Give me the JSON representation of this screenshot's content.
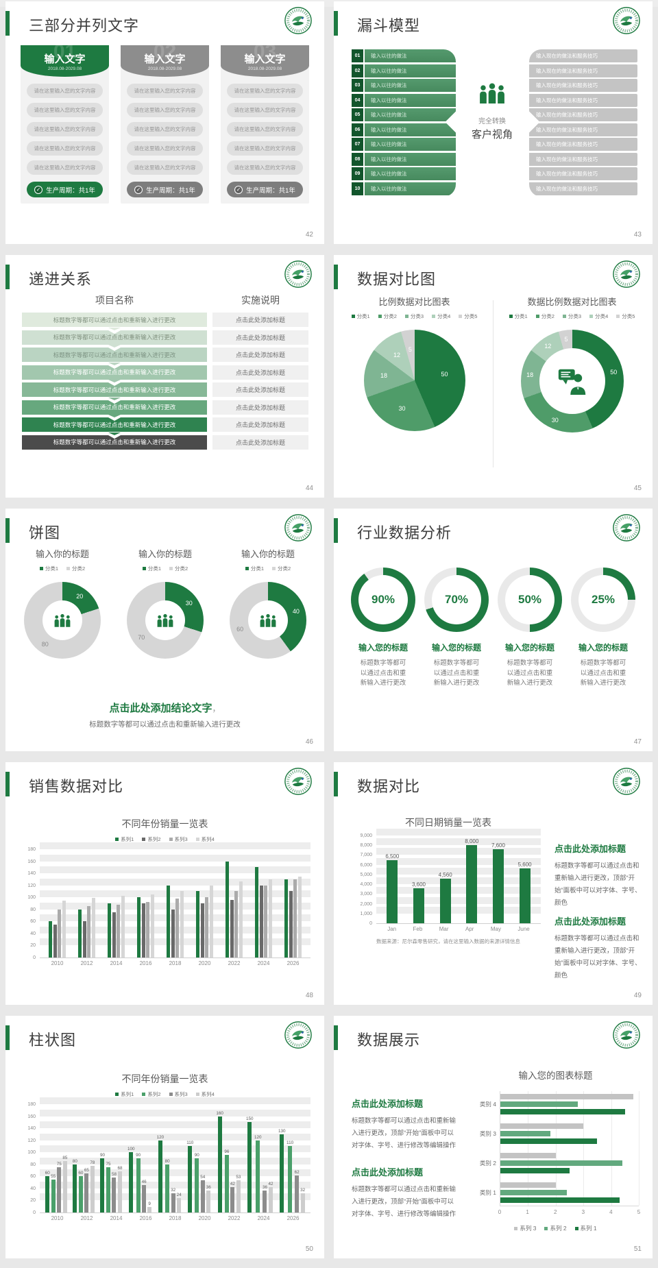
{
  "theme": {
    "accent": "#1e7a41",
    "green_mid": "#4f9c69",
    "gray_header": "#8d8d8d",
    "background": "#e8e8e8"
  },
  "slides": {
    "s42": {
      "title": "三部分并列文字",
      "page": "42",
      "header": "输入文字",
      "date": "2018.08-2029.08",
      "pill": "请在这里输入您的文字内容",
      "pill_count": 5,
      "footer": "生产周期：共1年",
      "columns": [
        {
          "num": "01",
          "color": "#1e7a41",
          "footer_color": "#1e7a41"
        },
        {
          "num": "02",
          "color": "#8d8d8d",
          "footer_color": "#7d7d7d"
        },
        {
          "num": "03",
          "color": "#8d8d8d",
          "footer_color": "#7d7d7d"
        }
      ]
    },
    "s43": {
      "title": "漏斗模型",
      "page": "43",
      "nums": [
        "01",
        "02",
        "03",
        "04",
        "05",
        "06",
        "07",
        "08",
        "09",
        "10"
      ],
      "left_text": "输入以往的做法",
      "right_text": "输入现在的做法和服务技巧",
      "center1": "完全转换",
      "center2": "客户视角"
    },
    "s44": {
      "title": "递进关系",
      "page": "44",
      "header_left": "项目名称",
      "header_right": "实施说明",
      "left_text": "标题数字等都可以通过点击和重新输入进行更改",
      "right_text": "点击此处添加标题",
      "row_colors": [
        "#dfeadd",
        "#cfe0d2",
        "#bad4c2",
        "#a2c7ae",
        "#87b897",
        "#67a87e",
        "#2f8350",
        "#4b4b4b"
      ],
      "row_text_colors": [
        "#80917f",
        "#80917f",
        "#7d9383",
        "#ffffff",
        "#ffffff",
        "#ffffff",
        "#ffffff",
        "#ffffff"
      ]
    },
    "s45": {
      "title": "数据对比图",
      "page": "45"
    },
    "s46": {
      "title": "饼图",
      "page": "46",
      "conclusion": "点击此处添加结论文字",
      "comma": "，",
      "sub": "标题数字等都可以通过点击和重新输入进行更改"
    },
    "s47": {
      "title": "行业数据分析",
      "page": "47",
      "items": [
        {
          "pct": "90%",
          "label": "输入您的标题",
          "desc": "标题数字等都可\n以通过点击和重\n新输入进行更改"
        },
        {
          "pct": "70%",
          "label": "输入您的标题",
          "desc": "标题数字等都可\n以通过点击和重\n新输入进行更改"
        },
        {
          "pct": "50%",
          "label": "输入您的标题",
          "desc": "标题数字等都可\n以通过点击和重\n新输入进行更改"
        },
        {
          "pct": "25%",
          "label": "输入您的标题",
          "desc": "标题数字等都可\n以通过点击和重\n新输入进行更改"
        }
      ]
    },
    "s48": {
      "title": "销售数据对比",
      "page": "48"
    },
    "s49": {
      "title": "数据对比",
      "page": "49",
      "note": "数据来源：尼尔森零售研究，请在这里输入数据的来源详情信息",
      "blocks": [
        {
          "heading": "点击此处添加标题",
          "body": "标题数字等都可以通过点击和重新输入进行更改，顶部“开始”面板中可以对字体、字号、颜色"
        },
        {
          "heading": "点击此处添加标题",
          "body": "标题数字等都可以通过点击和重新输入进行更改，顶部“开始”面板中可以对字体、字号、颜色"
        }
      ]
    },
    "s50": {
      "title": "柱状图",
      "page": "50"
    },
    "s51": {
      "title": "数据展示",
      "page": "51",
      "blocks": [
        {
          "heading": "点击此处添加标题",
          "body": "标题数字等都可以通过点击和重新输入进行更改，顶部“开始”面板中可以对字体、字号、进行修改等编辑操作"
        },
        {
          "heading": "点击此处添加标题",
          "body": "标题数字等都可以通过点击和重新输入进行更改，顶部“开始”面板中可以对字体、字号、进行修改等编辑操作"
        }
      ]
    }
  },
  "chart_data": [
    {
      "slide": "45",
      "type": "pie",
      "title": "比例数据对比图表",
      "legend": [
        "分类1",
        "分类2",
        "分类3",
        "分类4",
        "分类5"
      ],
      "values": [
        50,
        30,
        18,
        12,
        5
      ],
      "colors": [
        "#1e7a41",
        "#4f9c69",
        "#7fb593",
        "#aed0ba",
        "#d2d2d2"
      ]
    },
    {
      "slide": "45",
      "type": "donut",
      "title": "数据比例数据对比图表",
      "legend": [
        "分类1",
        "分类2",
        "分类3",
        "分类4",
        "分类5"
      ],
      "values": [
        50,
        30,
        18,
        12,
        5
      ],
      "colors": [
        "#1e7a41",
        "#4f9c69",
        "#7fb593",
        "#aed0ba",
        "#d2d2d2"
      ],
      "center_icon": "consultant"
    },
    {
      "slide": "46",
      "type": "donut",
      "title": "输入你的标题",
      "legend": [
        "分类1",
        "分类2"
      ],
      "values": [
        20,
        80
      ],
      "colors": [
        "#1e7a41",
        "#d6d6d6"
      ],
      "center_icon": "people"
    },
    {
      "slide": "46",
      "type": "donut",
      "title": "输入你的标题",
      "legend": [
        "分类1",
        "分类2"
      ],
      "values": [
        30,
        70
      ],
      "colors": [
        "#1e7a41",
        "#d6d6d6"
      ],
      "center_icon": "people"
    },
    {
      "slide": "46",
      "type": "donut",
      "title": "输入你的标题",
      "legend": [
        "分类1",
        "分类2"
      ],
      "values": [
        40,
        60
      ],
      "colors": [
        "#1e7a41",
        "#d6d6d6"
      ],
      "center_icon": "people"
    },
    {
      "slide": "47",
      "type": "progress-rings",
      "values": [
        90,
        70,
        50,
        25
      ],
      "unit": "%",
      "color": "#1e7a41",
      "track": "#e9e9e9"
    },
    {
      "slide": "48",
      "type": "bar",
      "title": "不同年份销量一览表",
      "categories": [
        "2010",
        "2012",
        "2014",
        "2016",
        "2018",
        "2020",
        "2022",
        "2024",
        "2026"
      ],
      "series": [
        {
          "name": "系列1",
          "color": "#1e7a41",
          "values": [
            60,
            80,
            90,
            100,
            120,
            110,
            160,
            150,
            130
          ]
        },
        {
          "name": "系列2",
          "color": "#696969",
          "values": [
            55,
            60,
            75,
            90,
            80,
            90,
            96,
            120,
            110
          ]
        },
        {
          "name": "系列3",
          "color": "#ababab",
          "values": [
            80,
            86,
            88,
            92,
            98,
            100,
            110,
            120,
            130
          ]
        },
        {
          "name": "系列4",
          "color": "#d6d6d6",
          "values": [
            95,
            99,
            102,
            105,
            110,
            120,
            126,
            130,
            135
          ]
        }
      ],
      "ylim": [
        0,
        180
      ],
      "ystep": 20
    },
    {
      "slide": "49",
      "type": "bar",
      "title": "不同日期销量一览表",
      "categories": [
        "Jan",
        "Feb",
        "Mar",
        "Apr",
        "May",
        "June"
      ],
      "series": [
        {
          "name": "",
          "color": "#1e7a41",
          "values": [
            6500,
            3600,
            4560,
            8000,
            7600,
            5600
          ]
        }
      ],
      "labels": [
        "6,500",
        "3,600",
        "4,560",
        "8,000",
        "7,600",
        "5,600"
      ],
      "ylim": [
        0,
        9000
      ],
      "ystep": 1000,
      "show_labels": true
    },
    {
      "slide": "50",
      "type": "bar",
      "title": "不同年份销量一览表",
      "categories": [
        "2010",
        "2012",
        "2014",
        "2016",
        "2018",
        "2020",
        "2022",
        "2024",
        "2026"
      ],
      "series": [
        {
          "name": "系列1",
          "color": "#1e7a41",
          "values": [
            60,
            80,
            90,
            100,
            120,
            110,
            160,
            150,
            130
          ]
        },
        {
          "name": "系列2",
          "color": "#4aa06a",
          "values": [
            55,
            60,
            75,
            90,
            80,
            90,
            96,
            120,
            110
          ]
        },
        {
          "name": "系列3",
          "color": "#8c8c8c",
          "values": [
            75,
            65,
            58,
            46,
            32,
            54,
            42,
            36,
            62
          ]
        },
        {
          "name": "系列4",
          "color": "#cdcdcd",
          "values": [
            85,
            78,
            68,
            9,
            24,
            36,
            53,
            42,
            32
          ]
        }
      ],
      "ylim": [
        0,
        180
      ],
      "ystep": 20,
      "show_labels": true
    },
    {
      "slide": "51",
      "type": "hbar",
      "title": "输入您的图表标题",
      "categories": [
        "类别 4",
        "类别 3",
        "类别 2",
        "类别 1"
      ],
      "series": [
        {
          "name": "系列 3",
          "color": "#c3c3c3",
          "values": [
            4.8,
            3.0,
            2.0,
            2.0
          ]
        },
        {
          "name": "系列 2",
          "color": "#62a97e",
          "values": [
            2.8,
            1.8,
            4.4,
            2.4
          ]
        },
        {
          "name": "系列 1",
          "color": "#1e7a41",
          "values": [
            4.5,
            3.5,
            2.5,
            4.3
          ]
        }
      ],
      "xlim": [
        0,
        5
      ],
      "xstep": 1
    }
  ]
}
